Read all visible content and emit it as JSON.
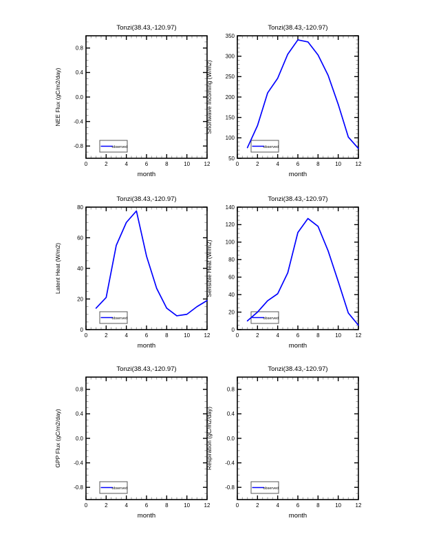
{
  "styles": {
    "background": "#ffffff",
    "line_color": "#0000ff",
    "frame_color": "#000000",
    "minor_tick_color": "#999999",
    "legend_border_color": "#555555",
    "text_color": "#000000"
  },
  "chart_data": {
    "type": "line",
    "layout": "2x3-grid",
    "legend_position": "lower-left-inside",
    "charts": [
      {
        "id": "nee-flux",
        "title": "Tonzi(38.43,-120.97)",
        "ylabel": "NEE Flux (gC/m2/day)",
        "xlabel": "month",
        "legend_label": "observed",
        "xlim": [
          0,
          12
        ],
        "x_ticks": [
          0,
          2,
          4,
          6,
          8,
          10,
          12
        ],
        "x_tick_labels": [
          "0",
          "2",
          "4",
          "6",
          "8",
          "10",
          "12"
        ],
        "x_minor_step": 0.5,
        "ylim": [
          -1,
          1
        ],
        "y_ticks": [
          -0.8,
          -0.4,
          0,
          0.4,
          0.8
        ],
        "y_tick_labels": [
          "-0.8",
          "-0.4",
          "0.0",
          "0.4",
          "0.8"
        ],
        "y_minor_step": 0.1,
        "x": [],
        "values": []
      },
      {
        "id": "shortwave-incoming",
        "title": "Tonzi(38.43,-120.97)",
        "ylabel": "Shortwave Incoming (W/m2)",
        "xlabel": "month",
        "legend_label": "observed",
        "xlim": [
          0,
          12
        ],
        "x_ticks": [
          0,
          2,
          4,
          6,
          8,
          10,
          12
        ],
        "x_tick_labels": [
          "0",
          "2",
          "4",
          "6",
          "8",
          "10",
          "12"
        ],
        "x_minor_step": 0.5,
        "ylim": [
          50,
          350
        ],
        "y_ticks": [
          50,
          100,
          150,
          200,
          250,
          300,
          350
        ],
        "y_tick_labels": [
          "50",
          "100",
          "150",
          "200",
          "250",
          "300",
          "350"
        ],
        "y_minor_step": 10,
        "x": [
          1,
          2,
          3,
          4,
          5,
          6,
          7,
          8,
          9,
          10,
          11,
          12
        ],
        "values": [
          76,
          130,
          210,
          246,
          305,
          340,
          335,
          303,
          253,
          182,
          102,
          74
        ]
      },
      {
        "id": "latent-heat",
        "title": "Tonzi(38.43,-120.97)",
        "ylabel": "Latent Heat (W/m2)",
        "xlabel": "month",
        "legend_label": "observed",
        "xlim": [
          0,
          12
        ],
        "x_ticks": [
          0,
          2,
          4,
          6,
          8,
          10,
          12
        ],
        "x_tick_labels": [
          "0",
          "2",
          "4",
          "6",
          "8",
          "10",
          "12"
        ],
        "x_minor_step": 0.5,
        "ylim": [
          0,
          80
        ],
        "y_ticks": [
          0,
          20,
          40,
          60,
          80
        ],
        "y_tick_labels": [
          "0",
          "20",
          "40",
          "60",
          "80"
        ],
        "y_minor_step": 5,
        "x": [
          1,
          2,
          3,
          4,
          5,
          6,
          7,
          8,
          9,
          10,
          11,
          12
        ],
        "values": [
          14,
          21,
          55,
          70,
          77.5,
          48,
          27,
          14,
          9,
          10,
          15,
          19
        ]
      },
      {
        "id": "sensible-heat",
        "title": "Tonzi(38.43,-120.97)",
        "ylabel": "Sensible Heat (W/m2)",
        "xlabel": "month",
        "legend_label": "observed",
        "xlim": [
          0,
          12
        ],
        "x_ticks": [
          0,
          2,
          4,
          6,
          8,
          10,
          12
        ],
        "x_tick_labels": [
          "0",
          "2",
          "4",
          "6",
          "8",
          "10",
          "12"
        ],
        "x_minor_step": 0.5,
        "ylim": [
          0,
          140
        ],
        "y_ticks": [
          0,
          20,
          40,
          60,
          80,
          100,
          120,
          140
        ],
        "y_tick_labels": [
          "0",
          "20",
          "40",
          "60",
          "80",
          "100",
          "120",
          "140"
        ],
        "y_minor_step": 5,
        "x": [
          1,
          2,
          3,
          4,
          5,
          6,
          7,
          8,
          9,
          10,
          11,
          12
        ],
        "values": [
          10,
          20,
          33,
          41,
          65,
          111,
          127,
          118,
          90,
          55,
          19,
          5
        ]
      },
      {
        "id": "gpp-flux",
        "title": "Tonzi(38.43,-120.97)",
        "ylabel": "GPP Flux (gC/m2/day)",
        "xlabel": "month",
        "legend_label": "observed",
        "xlim": [
          0,
          12
        ],
        "x_ticks": [
          0,
          2,
          4,
          6,
          8,
          10,
          12
        ],
        "x_tick_labels": [
          "0",
          "2",
          "4",
          "6",
          "8",
          "10",
          "12"
        ],
        "x_minor_step": 0.5,
        "ylim": [
          -1,
          1
        ],
        "y_ticks": [
          -0.8,
          -0.4,
          0,
          0.4,
          0.8
        ],
        "y_tick_labels": [
          "-0.8",
          "-0.4",
          "0.0",
          "0.4",
          "0.8"
        ],
        "y_minor_step": 0.1,
        "x": [],
        "values": []
      },
      {
        "id": "respiration",
        "title": "Tonzi(38.43,-120.97)",
        "ylabel": "Respiration (gC/m2/day)",
        "xlabel": "month",
        "legend_label": "observed",
        "xlim": [
          0,
          12
        ],
        "x_ticks": [
          0,
          2,
          4,
          6,
          8,
          10,
          12
        ],
        "x_tick_labels": [
          "0",
          "2",
          "4",
          "6",
          "8",
          "10",
          "12"
        ],
        "x_minor_step": 0.5,
        "ylim": [
          -1,
          1
        ],
        "y_ticks": [
          -0.8,
          -0.4,
          0,
          0.4,
          0.8
        ],
        "y_tick_labels": [
          "-0.8",
          "-0.4",
          "0.0",
          "0.4",
          "0.8"
        ],
        "y_minor_step": 0.1,
        "x": [],
        "values": []
      }
    ]
  }
}
